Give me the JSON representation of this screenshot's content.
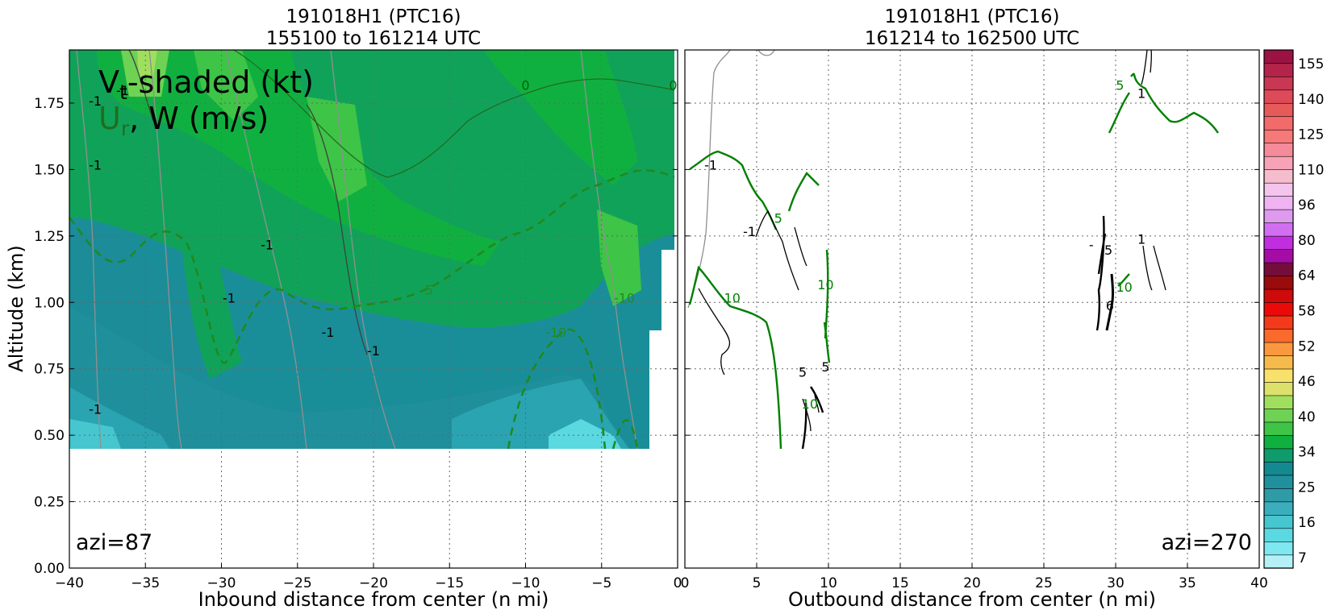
{
  "chart_data": [
    {
      "type": "contour",
      "title_line1": "191018H1 (PTC16)",
      "title_line2": "155100 to 161214 UTC",
      "xlabel": "Inbound distance from center (n mi)",
      "ylabel": "Altitude (km)",
      "xlim": [
        -40,
        0
      ],
      "ylim": [
        0.0,
        1.95
      ],
      "xticks": [
        -40,
        -35,
        -30,
        -25,
        -20,
        -15,
        -10,
        -5,
        0
      ],
      "yticks": [
        0.0,
        0.25,
        0.5,
        0.75,
        1.0,
        1.25,
        1.5,
        1.75
      ],
      "ytick_labels": [
        "0.00",
        "0.25",
        "0.50",
        "0.75",
        "1.00",
        "1.25",
        "1.50",
        "1.75"
      ],
      "grid": true,
      "annotation": "azi=87",
      "legend_text": {
        "line1_prefix": "V",
        "line1_sub": "t",
        "line1_suffix": "-shaded (kt)",
        "line2_prefix": "U",
        "line2_sub": "r",
        "line2_suffix": ", W (m/s)"
      },
      "contour_labels": [
        {
          "x": -36.5,
          "y": 1.78,
          "text": "-1",
          "color": "#000000"
        },
        {
          "x": -38.3,
          "y": 1.74,
          "text": "-1",
          "color": "#000000"
        },
        {
          "x": -38.3,
          "y": 1.5,
          "text": "-1",
          "color": "#000000"
        },
        {
          "x": -27,
          "y": 1.2,
          "text": "-1",
          "color": "#000000"
        },
        {
          "x": -29.5,
          "y": 1.0,
          "text": "-1",
          "color": "#000000"
        },
        {
          "x": -23,
          "y": 0.87,
          "text": "-1",
          "color": "#000000"
        },
        {
          "x": -20,
          "y": 0.8,
          "text": "-1",
          "color": "#000000"
        },
        {
          "x": -38.3,
          "y": 0.58,
          "text": "-1",
          "color": "#000000"
        },
        {
          "x": -10,
          "y": 1.8,
          "text": "0",
          "color": "#006400"
        },
        {
          "x": -0.3,
          "y": 1.8,
          "text": "0",
          "color": "#006400"
        },
        {
          "x": -16.5,
          "y": 1.03,
          "text": "-5",
          "color": "#228B22"
        },
        {
          "x": -8,
          "y": 0.87,
          "text": "-10",
          "color": "#228B22"
        },
        {
          "x": -3.5,
          "y": 1.0,
          "text": "-10",
          "color": "#228B22"
        }
      ]
    },
    {
      "type": "contour",
      "title_line1": "191018H1 (PTC16)",
      "title_line2": "161214 to 162500 UTC",
      "xlabel": "Outbound distance from center (n mi)",
      "xlim": [
        0,
        40
      ],
      "ylim": [
        0.0,
        1.95
      ],
      "xticks": [
        0,
        5,
        10,
        15,
        20,
        25,
        30,
        35,
        40
      ],
      "yticks": [
        0.0,
        0.25,
        0.5,
        0.75,
        1.0,
        1.25,
        1.5,
        1.75
      ],
      "grid": true,
      "annotation": "azi=270",
      "contour_labels": [
        {
          "x": 1.8,
          "y": 1.5,
          "text": "-1",
          "color": "#000000"
        },
        {
          "x": 4.5,
          "y": 1.25,
          "text": "-1",
          "color": "#000000"
        },
        {
          "x": 6.5,
          "y": 1.3,
          "text": "5",
          "color": "#008000"
        },
        {
          "x": 3.3,
          "y": 1.0,
          "text": "10",
          "color": "#008000"
        },
        {
          "x": 9.8,
          "y": 1.05,
          "text": "10",
          "color": "#008000"
        },
        {
          "x": 8.2,
          "y": 0.72,
          "text": "5",
          "color": "#000000"
        },
        {
          "x": 9.8,
          "y": 0.74,
          "text": "5",
          "color": "#000000"
        },
        {
          "x": 8.7,
          "y": 0.6,
          "text": "10",
          "color": "#008000"
        },
        {
          "x": 30.3,
          "y": 1.8,
          "text": "5",
          "color": "#008000"
        },
        {
          "x": 31.8,
          "y": 1.77,
          "text": "1",
          "color": "#000000"
        },
        {
          "x": 28.3,
          "y": 1.2,
          "text": "-",
          "color": "#000000"
        },
        {
          "x": 29.5,
          "y": 1.18,
          "text": "5",
          "color": "#000000"
        },
        {
          "x": 31.8,
          "y": 1.22,
          "text": "1",
          "color": "#000000"
        },
        {
          "x": 30.6,
          "y": 1.04,
          "text": "10",
          "color": "#008000"
        },
        {
          "x": 29.6,
          "y": 0.97,
          "text": "6",
          "color": "#000000"
        }
      ]
    },
    {
      "type": "colorbar",
      "tick_labels": [
        "155",
        "140",
        "125",
        "110",
        "96",
        "80",
        "64",
        "58",
        "52",
        "46",
        "40",
        "34",
        "25",
        "16",
        "7"
      ],
      "band_colors": [
        "#b4f0f6",
        "#7ee7ef",
        "#5ad9e1",
        "#46c6cf",
        "#3aaebd",
        "#2e9ba6",
        "#20909d",
        "#138a90",
        "#0f9b6c",
        "#10b040",
        "#3ec446",
        "#6ed254",
        "#a0de5e",
        "#dde06a",
        "#f7e16a",
        "#f6ba4c",
        "#f9983e",
        "#fa6a2c",
        "#f33a1a",
        "#eb0a0a",
        "#cf0a0a",
        "#9a0b0b",
        "#750d3b",
        "#a40ca4",
        "#c12ee0",
        "#d26ef0",
        "#de9aef",
        "#eeb3f0",
        "#f3c4ec",
        "#f5bccd",
        "#f7a2b6",
        "#f48a9a",
        "#f67878",
        "#f26a6a",
        "#e75a5a",
        "#dd4a58",
        "#c83852",
        "#b4244a",
        "#9c1242"
      ]
    }
  ]
}
